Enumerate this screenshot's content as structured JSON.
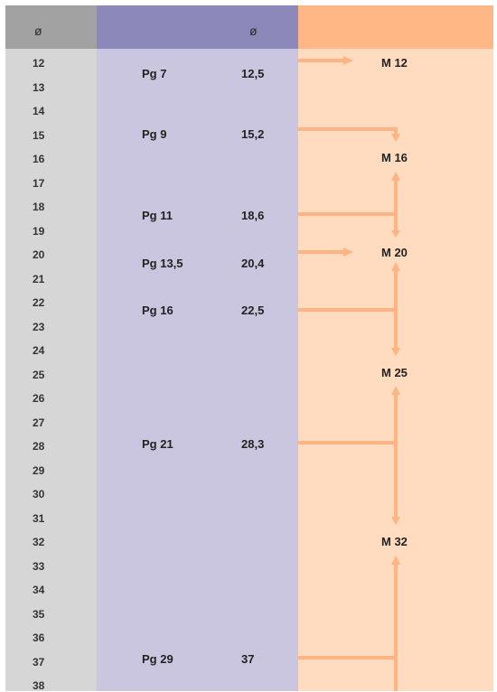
{
  "header": {
    "diameter_symbol": "ø",
    "pg_diameter_symbol": "ø"
  },
  "sizes": [
    "12",
    "13",
    "14",
    "15",
    "16",
    "17",
    "18",
    "19",
    "20",
    "21",
    "22",
    "23",
    "24",
    "25",
    "26",
    "27",
    "28",
    "29",
    "30",
    "31",
    "32",
    "33",
    "34",
    "35",
    "36",
    "37",
    "38"
  ],
  "pg_threads": [
    {
      "label": "Pg 7",
      "diameter": "12,5"
    },
    {
      "label": "Pg 9",
      "diameter": "15,2"
    },
    {
      "label": "Pg 11",
      "diameter": "18,6"
    },
    {
      "label": "Pg 13,5",
      "diameter": "20,4"
    },
    {
      "label": "Pg 16",
      "diameter": "22,5"
    },
    {
      "label": "Pg 21",
      "diameter": "28,3"
    },
    {
      "label": "Pg 29",
      "diameter": "37"
    }
  ],
  "metric_threads": [
    "M 12",
    "M 16",
    "M 20",
    "M 25",
    "M 32"
  ],
  "colors": {
    "size_column": "#d6d6d6",
    "size_header": "#a2a2a2",
    "pg_column": "#cbc6df",
    "pg_header": "#8c88b9",
    "metric_column": "#ffdcc0",
    "metric_header": "#ffb785",
    "arrow": "#ffb483"
  }
}
